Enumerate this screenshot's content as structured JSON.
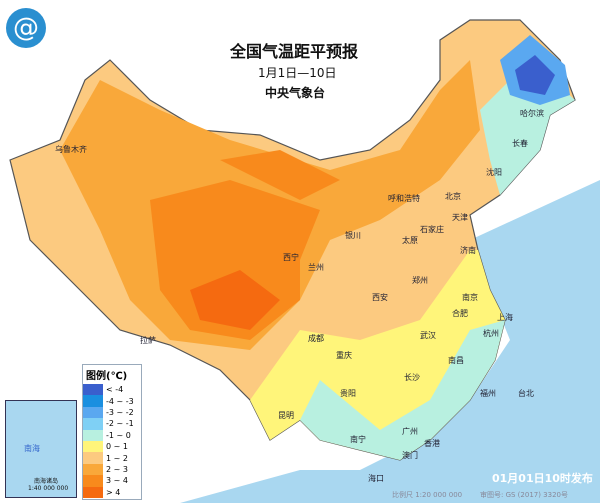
{
  "title": "全国气温距平预报",
  "subtitle": "1月1日—10日",
  "issuer": "中央气象台",
  "issue_time": "01月01日10时发布",
  "scale": "比例尺 1:20 000 000",
  "map_approval": "审图号: GS (2017) 3320号",
  "legend": {
    "title": "图例(℃)",
    "items": [
      {
        "label": "< -4",
        "color": "#3a5fcd"
      },
      {
        "label": "-4 ~ -3",
        "color": "#1a8fe0"
      },
      {
        "label": "-3 ~ -2",
        "color": "#5aa8f0"
      },
      {
        "label": "-2 ~ -1",
        "color": "#7fd0f5"
      },
      {
        "label": "-1 ~ 0",
        "color": "#b8f0e0"
      },
      {
        "label": "0 ~ 1",
        "color": "#fff57a"
      },
      {
        "label": "1 ~ 2",
        "color": "#fcca80"
      },
      {
        "label": "2 ~ 3",
        "color": "#f9a83a"
      },
      {
        "label": "3 ~ 4",
        "color": "#f88a1c"
      },
      {
        "label": "> 4",
        "color": "#f56a10"
      }
    ]
  },
  "inset": {
    "title": "南海诸岛",
    "scale": "1:40 000 000",
    "sea": "南海"
  },
  "cities": [
    {
      "name": "乌鲁木齐"
    },
    {
      "name": "哈尔滨"
    },
    {
      "name": "长春"
    },
    {
      "name": "沈阳"
    },
    {
      "name": "北京"
    },
    {
      "name": "天津"
    },
    {
      "name": "呼和浩特"
    },
    {
      "name": "石家庄"
    },
    {
      "name": "太原"
    },
    {
      "name": "济南"
    },
    {
      "name": "银川"
    },
    {
      "name": "西宁"
    },
    {
      "name": "兰州"
    },
    {
      "name": "郑州"
    },
    {
      "name": "西安"
    },
    {
      "name": "合肥"
    },
    {
      "name": "南京"
    },
    {
      "name": "上海"
    },
    {
      "name": "杭州"
    },
    {
      "name": "武汉"
    },
    {
      "name": "成都"
    },
    {
      "name": "拉萨"
    },
    {
      "name": "重庆"
    },
    {
      "name": "南昌"
    },
    {
      "name": "长沙"
    },
    {
      "name": "贵阳"
    },
    {
      "name": "福州"
    },
    {
      "name": "台北"
    },
    {
      "name": "昆明"
    },
    {
      "name": "南宁"
    },
    {
      "name": "广州"
    },
    {
      "name": "香港"
    },
    {
      "name": "澳门"
    },
    {
      "name": "海口"
    }
  ]
}
